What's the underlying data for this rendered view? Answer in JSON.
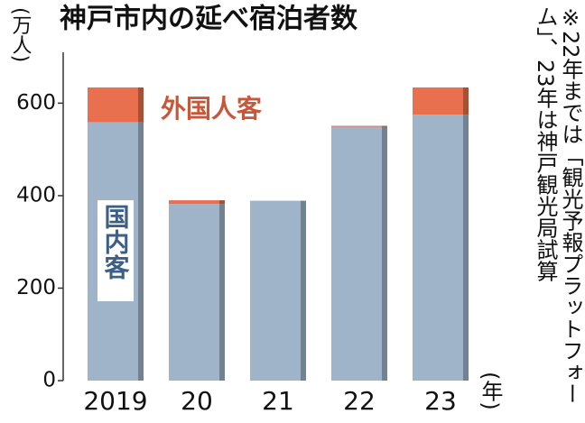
{
  "chart_data": {
    "type": "stacked-bar",
    "title": "神戸市内の延べ宿泊者数",
    "y_label": "(万人)",
    "x_label": "(年)",
    "note": "※22年までは「観光予報プラットフォーム」、23年は神戸観光局試算",
    "categories": [
      "2019",
      "20",
      "21",
      "22",
      "23"
    ],
    "series": [
      {
        "name": "国内客",
        "color": "#9fb4c9",
        "values": [
          559,
          382,
          389,
          549,
          575
        ]
      },
      {
        "name": "外国人客",
        "color": "#e8704e",
        "values": [
          75,
          8,
          0,
          2,
          59
        ]
      }
    ],
    "ylim": [
      0,
      710
    ],
    "yticks": [
      0,
      200,
      400,
      600
    ],
    "grid": false
  }
}
